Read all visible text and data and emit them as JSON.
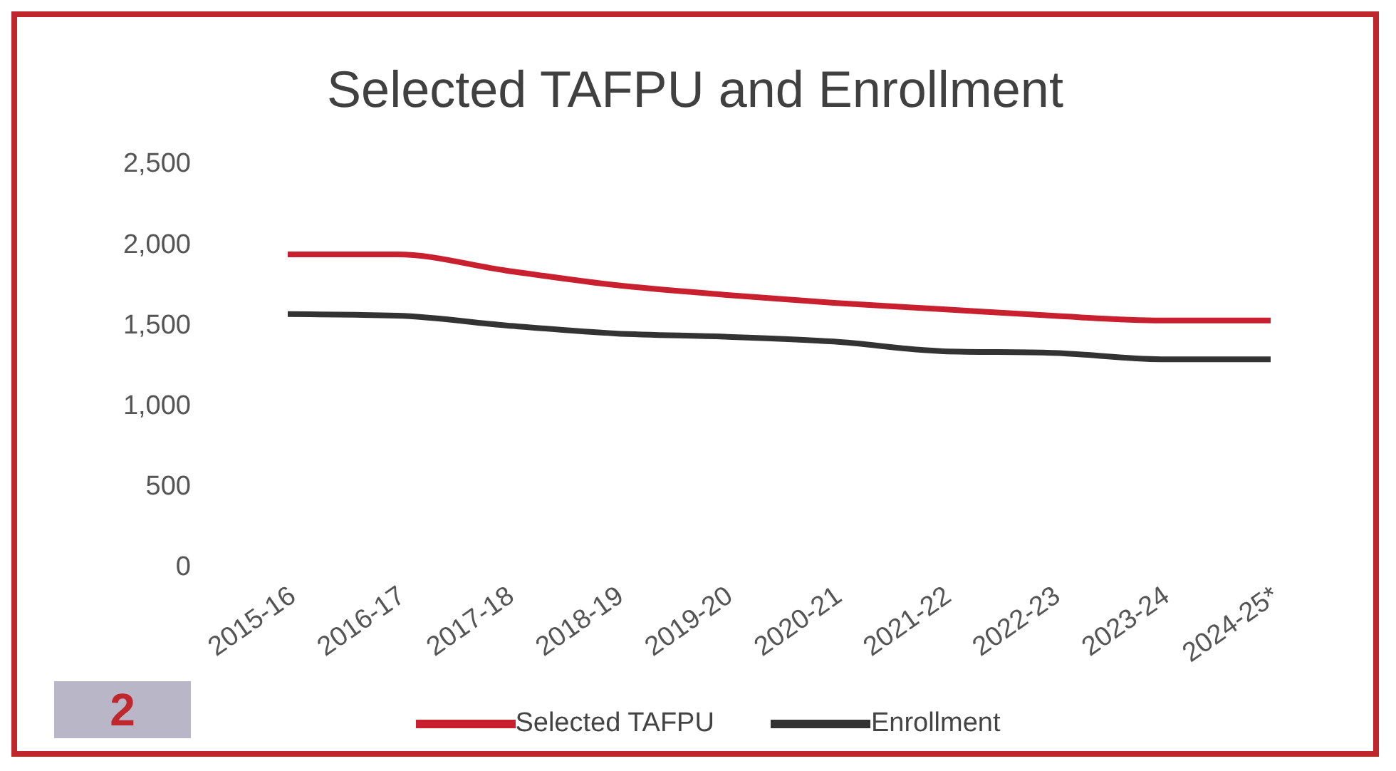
{
  "chart_data": {
    "type": "line",
    "title": "Selected TAFPU and Enrollment",
    "categories": [
      "2015-16",
      "2016-17",
      "2017-18",
      "2018-19",
      "2019-20",
      "2020-21",
      "2021-22",
      "2022-23",
      "2023-24",
      "2024-25*"
    ],
    "series": [
      {
        "name": "Selected TAFPU",
        "color": "#c8202f",
        "values": [
          1930,
          1930,
          1830,
          1740,
          1680,
          1630,
          1590,
          1550,
          1520,
          1520
        ]
      },
      {
        "name": "Enrollment",
        "color": "#333333",
        "values": [
          1560,
          1550,
          1490,
          1440,
          1420,
          1390,
          1330,
          1320,
          1280,
          1280
        ]
      }
    ],
    "ylim": [
      0,
      2500
    ],
    "yticks": [
      0,
      500,
      {
        "value": 1000,
        "label": "1,000"
      },
      {
        "value": 1500,
        "label": "1,500"
      },
      {
        "value": 2000,
        "label": "2,000"
      },
      {
        "value": 2500,
        "label": "2,500"
      }
    ],
    "grid": false,
    "legend": "bottom",
    "marker": "none",
    "line_style": "solid",
    "annotations": [
      "2"
    ]
  }
}
